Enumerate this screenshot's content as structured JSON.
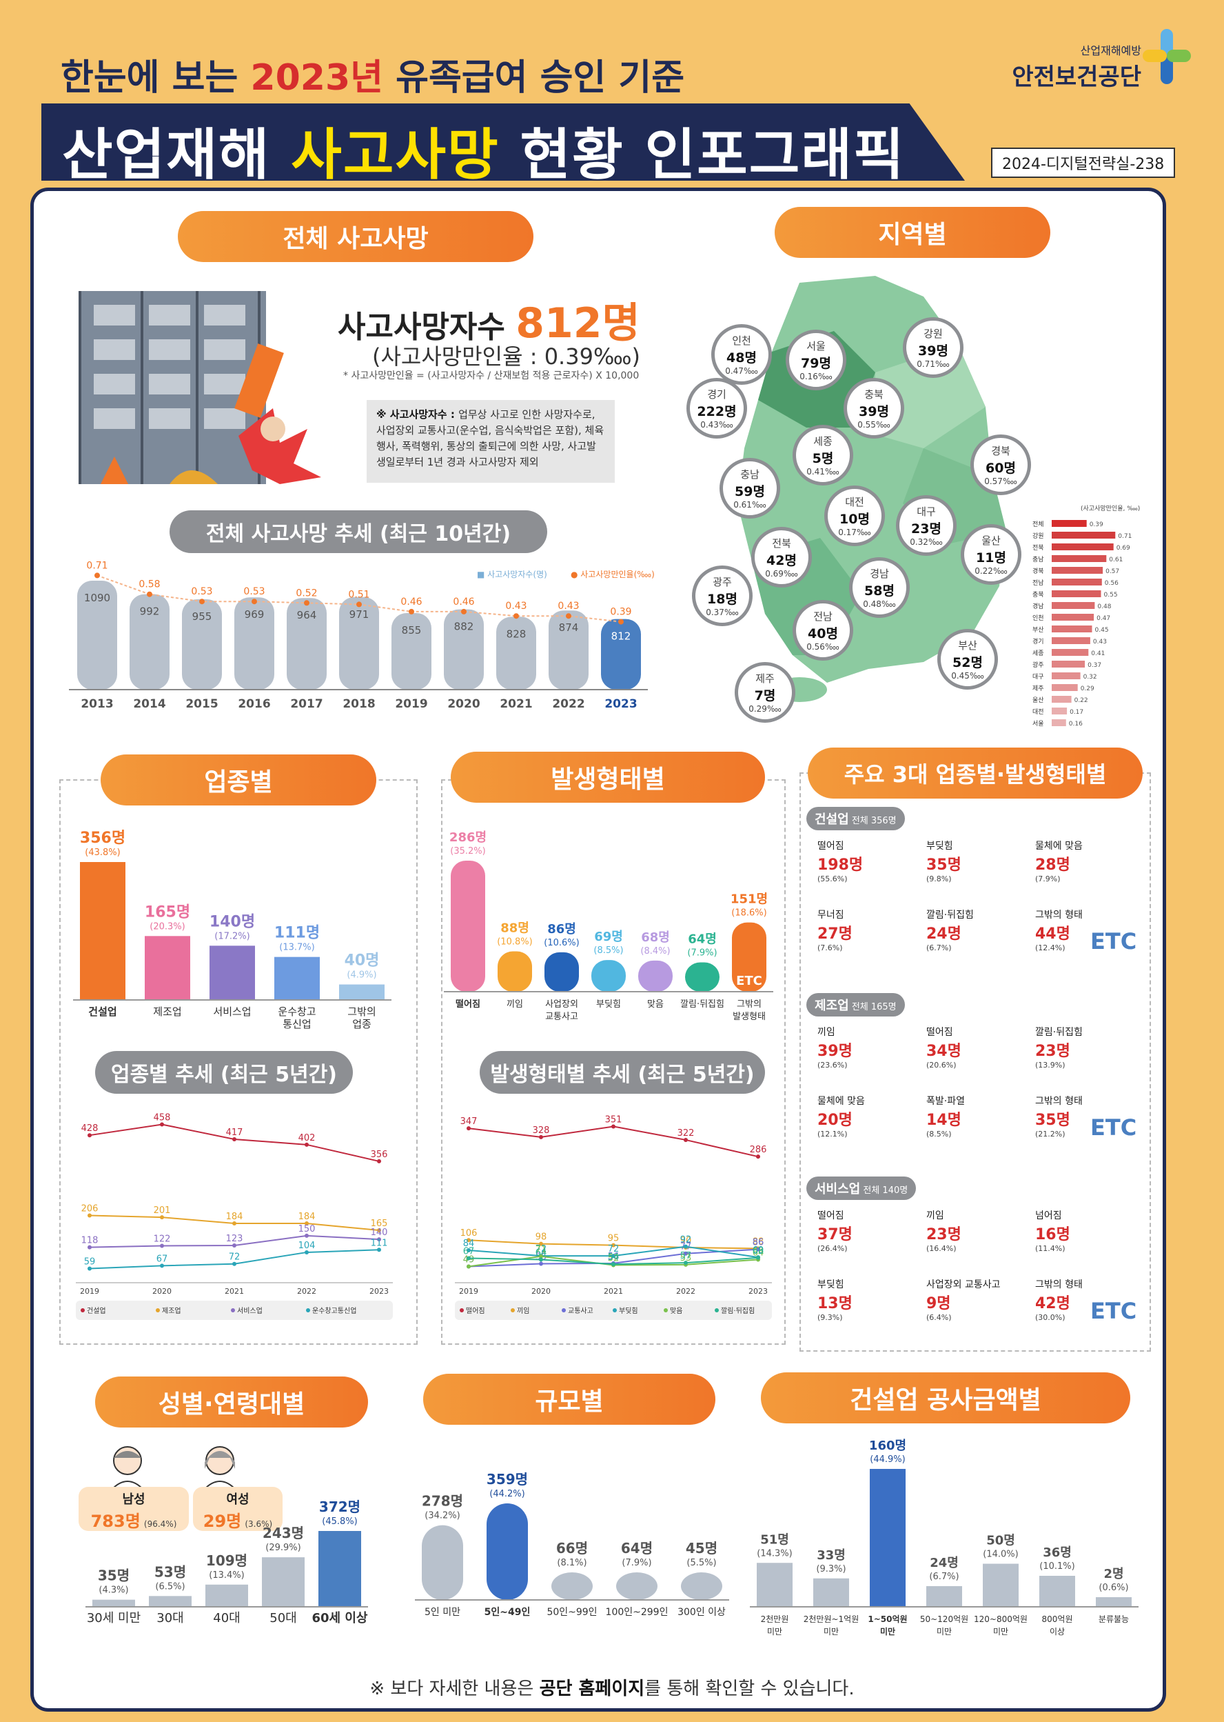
{
  "header": {
    "subtitle_pre": "한눈에 보는 ",
    "subtitle_year": "2023년",
    "subtitle_post": " 유족급여 승인 기준",
    "title_pre": "산업재해 ",
    "title_hl": "사고사망",
    "title_post": " 현황 인포그래픽",
    "doc_code": "2024-디지털전략실-238",
    "logo_small": "산업재해예방",
    "logo_big": "안전보건공단"
  },
  "overall": {
    "pill": "전체 사고사망",
    "fatal_label": "사고사망자수 ",
    "fatal_value": "812명",
    "rate": "(사고사망만인율 : 0.39‱)",
    "formula": "* 사고사망만인율 = (사고사망자수 / 산재보험 적용 근로자수) X 10,000",
    "note_title": "※ 사고사망자수 : ",
    "note_body": "업무상 사고로 인한 사망자수로, 사업장외 교통사고(운수업, 음식숙박업은 포함), 체육행사, 폭력행위, 통상의 출퇴근에 의한 사망, 사고발생일로부터 1년 경과 사고사망자 제외"
  },
  "trend10": {
    "pill": "전체 사고사망 추세 (최근 10년간)",
    "legend_count": "■ 사고사망자수(명)",
    "legend_rate": "● 사고사망만인율(‱)"
  },
  "regions": {
    "pill": "지역별",
    "mini_title": "(사고사망만인율, ‱)",
    "items": [
      {
        "name": "인천",
        "count": "48명",
        "rate": "0.47‱"
      },
      {
        "name": "서울",
        "count": "79명",
        "rate": "0.16‱"
      },
      {
        "name": "강원",
        "count": "39명",
        "rate": "0.71‱"
      },
      {
        "name": "경기",
        "count": "222명",
        "rate": "0.43‱"
      },
      {
        "name": "충북",
        "count": "39명",
        "rate": "0.55‱"
      },
      {
        "name": "세종",
        "count": "5명",
        "rate": "0.41‱"
      },
      {
        "name": "충남",
        "count": "59명",
        "rate": "0.61‱"
      },
      {
        "name": "경북",
        "count": "60명",
        "rate": "0.57‱"
      },
      {
        "name": "대전",
        "count": "10명",
        "rate": "0.17‱"
      },
      {
        "name": "대구",
        "count": "23명",
        "rate": "0.32‱"
      },
      {
        "name": "전북",
        "count": "42명",
        "rate": "0.69‱"
      },
      {
        "name": "울산",
        "count": "11명",
        "rate": "0.22‱"
      },
      {
        "name": "광주",
        "count": "18명",
        "rate": "0.37‱"
      },
      {
        "name": "경남",
        "count": "58명",
        "rate": "0.48‱"
      },
      {
        "name": "전남",
        "count": "40명",
        "rate": "0.56‱"
      },
      {
        "name": "부산",
        "count": "52명",
        "rate": "0.45‱"
      },
      {
        "name": "제주",
        "count": "7명",
        "rate": "0.29‱"
      }
    ]
  },
  "industry": {
    "pill": "업종별"
  },
  "accident_type": {
    "pill": "발생형태별"
  },
  "industry_trend": {
    "pill": "업종별 추세 (최근 5년간)"
  },
  "type_trend": {
    "pill": "발생형태별 추세 (최근 5년간)"
  },
  "top3": {
    "pill": "주요 3대 업종별·발생형태별",
    "groups": [
      {
        "title": "건설업",
        "total": "전체 356명",
        "cells": [
          [
            "떨어짐",
            "198명",
            "(55.6%)"
          ],
          [
            "부딪힘",
            "35명",
            "(9.8%)"
          ],
          [
            "물체에 맞음",
            "28명",
            "(7.9%)"
          ],
          [
            "무너짐",
            "27명",
            "(7.6%)"
          ],
          [
            "깔림·뒤집힘",
            "24명",
            "(6.7%)"
          ],
          [
            "그밖의 형태",
            "44명",
            "(12.4%)"
          ]
        ]
      },
      {
        "title": "제조업",
        "total": "전체 165명",
        "cells": [
          [
            "끼임",
            "39명",
            "(23.6%)"
          ],
          [
            "떨어짐",
            "34명",
            "(20.6%)"
          ],
          [
            "깔림·뒤집힘",
            "23명",
            "(13.9%)"
          ],
          [
            "물체에 맞음",
            "20명",
            "(12.1%)"
          ],
          [
            "폭발·파열",
            "14명",
            "(8.5%)"
          ],
          [
            "그밖의 형태",
            "35명",
            "(21.2%)"
          ]
        ]
      },
      {
        "title": "서비스업",
        "total": "전체 140명",
        "cells": [
          [
            "떨어짐",
            "37명",
            "(26.4%)"
          ],
          [
            "끼임",
            "23명",
            "(16.4%)"
          ],
          [
            "넘어짐",
            "16명",
            "(11.4%)"
          ],
          [
            "부딪힘",
            "13명",
            "(9.3%)"
          ],
          [
            "사업장외 교통사고",
            "9명",
            "(6.4%)"
          ],
          [
            "그밖의 형태",
            "42명",
            "(30.0%)"
          ]
        ]
      }
    ],
    "etc": "ETC"
  },
  "gender_age": {
    "pill": "성별·연령대별",
    "male_label": "남성",
    "male_value": "783명",
    "male_pct": "(96.4%)",
    "female_label": "여성",
    "female_value": "29명",
    "female_pct": "(3.6%)"
  },
  "scale": {
    "pill": "규모별"
  },
  "construction_cost": {
    "pill": "건설업 공사금액별"
  },
  "footer": {
    "pre": "※ 보다 자세한 내용은 ",
    "bold": "공단 홈페이지",
    "post": "를 통해 확인할 수 있습니다."
  },
  "colors": {
    "orange": "#f07629",
    "navy": "#1f2a55",
    "blue": "#4a7fc1",
    "gray": "#b8c1cc"
  },
  "chart_data": [
    {
      "type": "bar",
      "id": "trend10",
      "categories": [
        "2013",
        "2014",
        "2015",
        "2016",
        "2017",
        "2018",
        "2019",
        "2020",
        "2021",
        "2022",
        "2023"
      ],
      "series": [
        {
          "name": "사고사망자수(명)",
          "values": [
            1090,
            992,
            955,
            969,
            964,
            971,
            855,
            882,
            828,
            874,
            812
          ]
        },
        {
          "name": "사고사망만인율(‱)",
          "values": [
            0.71,
            0.58,
            0.53,
            0.53,
            0.52,
            0.51,
            0.46,
            0.46,
            0.43,
            0.43,
            0.39
          ]
        }
      ]
    },
    {
      "type": "bar",
      "id": "industry",
      "categories": [
        "건설업",
        "제조업",
        "서비스업",
        "운수창고 통신업",
        "그밖의 업종"
      ],
      "values": [
        356,
        165,
        140,
        111,
        40
      ],
      "value_labels": [
        "356명",
        "165명",
        "140명",
        "111명",
        "40명"
      ],
      "pct": [
        "(43.8%)",
        "(20.3%)",
        "(17.2%)",
        "(13.7%)",
        "(4.9%)"
      ]
    },
    {
      "type": "bar",
      "id": "accident",
      "categories": [
        "떨어짐",
        "끼임",
        "사업장외 교통사고",
        "부딪힘",
        "맞음",
        "깔림·뒤집힘",
        "그밖의 발생형태"
      ],
      "values": [
        286,
        88,
        86,
        69,
        68,
        64,
        151
      ],
      "value_labels": [
        "286명",
        "88명",
        "86명",
        "69명",
        "68명",
        "64명",
        "151명"
      ],
      "pct": [
        "(35.2%)",
        "(10.8%)",
        "(10.6%)",
        "(8.5%)",
        "(8.4%)",
        "(7.9%)",
        "(18.6%)"
      ],
      "etc": "ETC"
    },
    {
      "type": "line",
      "id": "industry_trend",
      "x": [
        "2019",
        "2020",
        "2021",
        "2022",
        "2023"
      ],
      "series": [
        {
          "name": "건설업",
          "values": [
            428,
            458,
            417,
            402,
            356
          ]
        },
        {
          "name": "제조업",
          "values": [
            206,
            201,
            184,
            184,
            165
          ]
        },
        {
          "name": "서비스업",
          "values": [
            118,
            122,
            123,
            150,
            140
          ]
        },
        {
          "name": "운수창고통신업",
          "values": [
            59,
            67,
            72,
            104,
            111
          ]
        }
      ]
    },
    {
      "type": "line",
      "id": "type_trend",
      "x": [
        "2019",
        "2020",
        "2021",
        "2022",
        "2023"
      ],
      "series": [
        {
          "name": "떨어짐",
          "values": [
            347,
            328,
            351,
            322,
            286
          ]
        },
        {
          "name": "끼임",
          "values": [
            106,
            98,
            95,
            90,
            88
          ]
        },
        {
          "name": "교통사고",
          "values": [
            49,
            55,
            56,
            77,
            86
          ]
        },
        {
          "name": "부딪힘",
          "values": [
            84,
            72,
            72,
            92,
            69
          ]
        },
        {
          "name": "맞음",
          "values": [
            49,
            71,
            52,
            53,
            64
          ]
        },
        {
          "name": "깔림·뒤집힘",
          "values": [
            67,
            64,
            54,
            57,
            68
          ]
        }
      ]
    },
    {
      "type": "bar",
      "id": "age",
      "categories": [
        "30세 미만",
        "30대",
        "40대",
        "50대",
        "60세 이상"
      ],
      "values": [
        35,
        53,
        109,
        243,
        372
      ],
      "value_labels": [
        "35명",
        "53명",
        "109명",
        "243명",
        "372명"
      ],
      "pct": [
        "(4.3%)",
        "(6.5%)",
        "(13.4%)",
        "(29.9%)",
        "(45.8%)"
      ]
    },
    {
      "type": "bar",
      "id": "scale",
      "categories": [
        "5인 미만",
        "5인~49인",
        "50인~99인",
        "100인~299인",
        "300인 이상"
      ],
      "values": [
        278,
        359,
        66,
        64,
        45
      ],
      "value_labels": [
        "278명",
        "359명",
        "66명",
        "64명",
        "45명"
      ],
      "pct": [
        "(34.2%)",
        "(44.2%)",
        "(8.1%)",
        "(7.9%)",
        "(5.5%)"
      ]
    },
    {
      "type": "bar",
      "id": "cost",
      "categories": [
        "2천만원 미만",
        "2천만원~1억원 미만",
        "1~50억원 미만",
        "50~120억원 미만",
        "120~800억원 미만",
        "800억원 이상",
        "분류불능"
      ],
      "values": [
        51,
        33,
        160,
        24,
        50,
        36,
        2
      ],
      "value_labels": [
        "51명",
        "33명",
        "160명",
        "24명",
        "50명",
        "36명",
        "2명"
      ],
      "pct": [
        "(14.3%)",
        "(9.3%)",
        "(44.9%)",
        "(6.7%)",
        "(14.0%)",
        "(10.1%)",
        "(0.6%)"
      ]
    },
    {
      "type": "bar",
      "id": "region_rate",
      "categories": [
        "전체",
        "강원",
        "전북",
        "충남",
        "경북",
        "전남",
        "충북",
        "경남",
        "인천",
        "부산",
        "경기",
        "세종",
        "광주",
        "대구",
        "제주",
        "울산",
        "대전",
        "서울"
      ],
      "values": [
        0.39,
        0.71,
        0.69,
        0.61,
        0.57,
        0.56,
        0.55,
        0.48,
        0.47,
        0.45,
        0.43,
        0.41,
        0.37,
        0.32,
        0.29,
        0.22,
        0.17,
        0.16
      ],
      "title": "(사고사망만인율, ‱)"
    }
  ]
}
